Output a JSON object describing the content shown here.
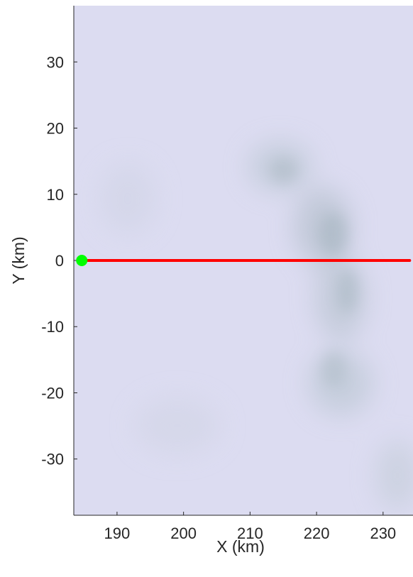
{
  "chart_data": {
    "type": "line",
    "title": "",
    "xlabel": "X (km)",
    "ylabel": "Y (km)",
    "xlim": [
      183.5,
      234.5
    ],
    "ylim": [
      -38.5,
      38.5
    ],
    "x_ticks": [
      190,
      200,
      210,
      220,
      230
    ],
    "y_ticks": [
      30,
      20,
      10,
      0,
      -10,
      -20,
      -30
    ],
    "grid": false,
    "legend": "none",
    "background": "satellite imagery (pale lavender with faint blue-gray cloud features)",
    "series": [
      {
        "color": "#ff0000",
        "x": [
          184.7,
          234.0
        ],
        "y": [
          0,
          0
        ]
      }
    ],
    "markers": [
      {
        "color": "#00ff00",
        "shape": "circle",
        "x": 184.7,
        "y": 0
      }
    ],
    "colors": {
      "track": "#ff0000",
      "start_marker": "#00ff00",
      "background": "#dcdcf0",
      "axis": "#262626"
    }
  }
}
